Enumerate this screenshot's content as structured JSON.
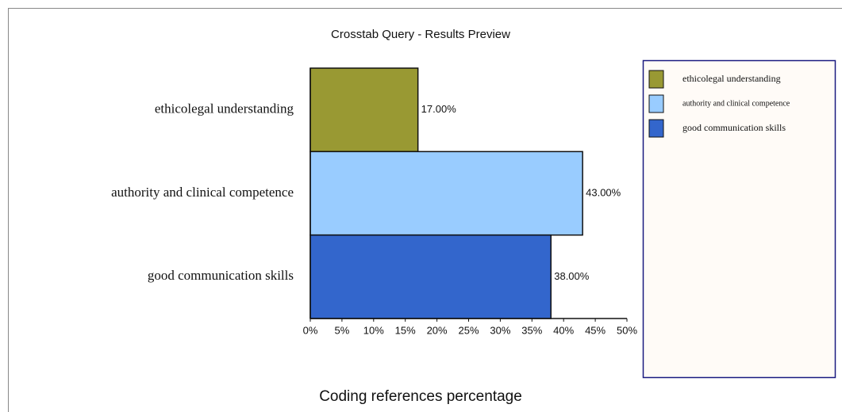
{
  "chart_data": {
    "type": "bar",
    "orientation": "horizontal",
    "title": "Crosstab Query - Results Preview",
    "x_label": "Coding references percentage",
    "categories": [
      "good communication skills",
      "authority and clinical competence",
      "ethicolegal understanding"
    ],
    "values": [
      38,
      43,
      17
    ],
    "value_labels": [
      "38.00%",
      "43.00%",
      "17.00%"
    ],
    "colors": [
      "#3366cc",
      "#99ccff",
      "#999933"
    ],
    "xlim": [
      0,
      50
    ],
    "xticks": [
      {
        "value": 0,
        "label": "0%"
      },
      {
        "value": 5,
        "label": "5%"
      },
      {
        "value": 10,
        "label": "10%"
      },
      {
        "value": 15,
        "label": "15%"
      },
      {
        "value": 20,
        "label": "20%"
      },
      {
        "value": 25,
        "label": "25%"
      },
      {
        "value": 30,
        "label": "30%"
      },
      {
        "value": 35,
        "label": "35%"
      },
      {
        "value": 40,
        "label": "40%"
      },
      {
        "value": 45,
        "label": "45%"
      },
      {
        "value": 50,
        "label": "50%"
      }
    ],
    "legend": "right"
  }
}
